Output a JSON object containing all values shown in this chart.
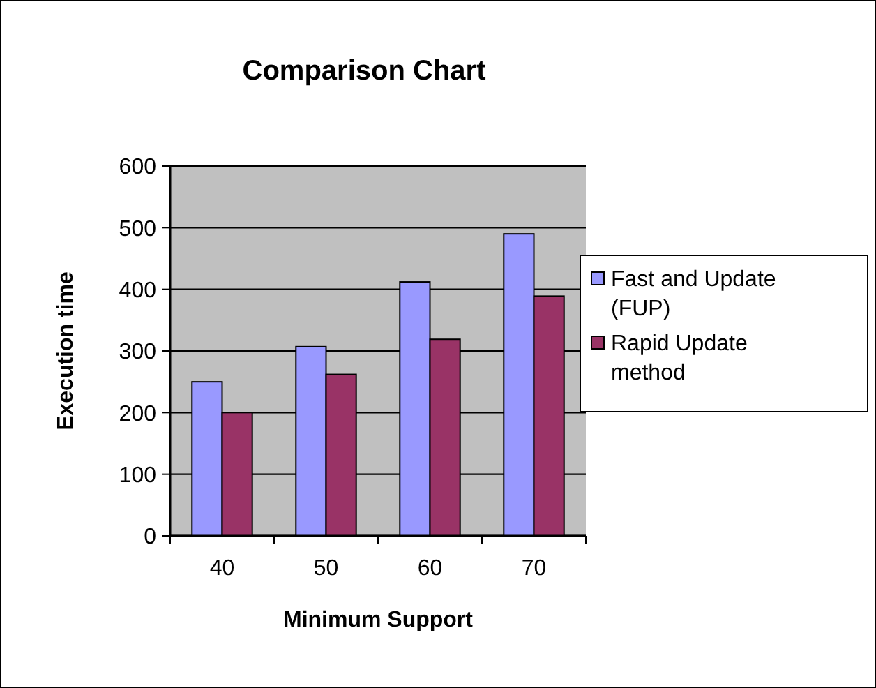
{
  "chart_data": {
    "type": "bar",
    "title": "Comparison Chart",
    "xlabel": "Minimum Support",
    "ylabel": "Execution time",
    "categories": [
      "40",
      "50",
      "60",
      "70"
    ],
    "series": [
      {
        "name": "Fast and Update (FUP)",
        "color": "#9999ff",
        "values": [
          250,
          307,
          412,
          490
        ]
      },
      {
        "name": "Rapid Update method",
        "color": "#993366",
        "values": [
          200,
          262,
          319,
          389
        ]
      }
    ],
    "ylim": [
      0,
      600
    ],
    "yticks": [
      0,
      100,
      200,
      300,
      400,
      500,
      600
    ],
    "grid": "y",
    "legend": "right"
  }
}
